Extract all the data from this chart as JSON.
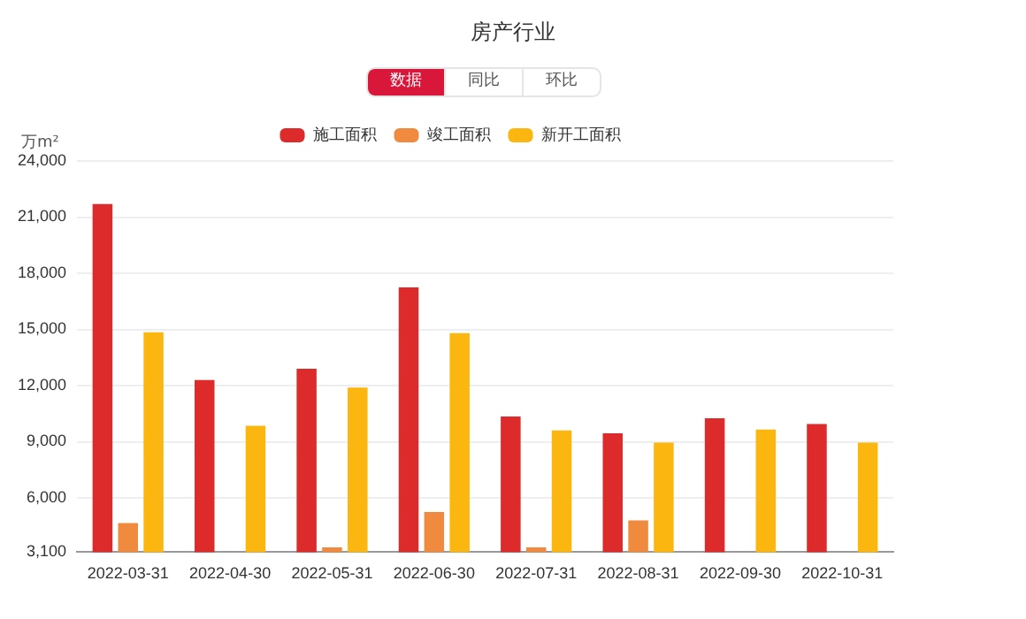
{
  "chart_data": {
    "type": "bar",
    "title": "房产行业",
    "annotations": [
      "数据",
      "同比",
      "环比"
    ],
    "ylabel": "万m²",
    "categories": [
      "2022-03-31",
      "2022-04-30",
      "2022-05-31",
      "2022-06-30",
      "2022-07-31",
      "2022-08-31",
      "2022-09-30",
      "2022-10-31"
    ],
    "series": [
      {
        "name": "施工面积",
        "color": "#dd2a2a",
        "values": [
          21700,
          12300,
          12900,
          17250,
          10350,
          9450,
          10250,
          9950
        ]
      },
      {
        "name": "竣工面积",
        "color": "#f08a3e",
        "values": [
          4650,
          null,
          3350,
          5250,
          3350,
          4800,
          null,
          null
        ]
      },
      {
        "name": "新开工面积",
        "color": "#fbb710",
        "values": [
          14850,
          9850,
          11900,
          14800,
          9600,
          8950,
          9650,
          8950
        ]
      }
    ],
    "ylim": [
      3100,
      24000
    ],
    "yticks": [
      {
        "value": 3100,
        "label": "3,100"
      },
      {
        "value": 6000,
        "label": "6,000"
      },
      {
        "value": 9000,
        "label": "9,000"
      },
      {
        "value": 12000,
        "label": "12,000"
      },
      {
        "value": 15000,
        "label": "15,000"
      },
      {
        "value": 18000,
        "label": "18,000"
      },
      {
        "value": 21000,
        "label": "21,000"
      },
      {
        "value": 24000,
        "label": "24,000"
      }
    ],
    "grid": "y",
    "legend": "top"
  }
}
